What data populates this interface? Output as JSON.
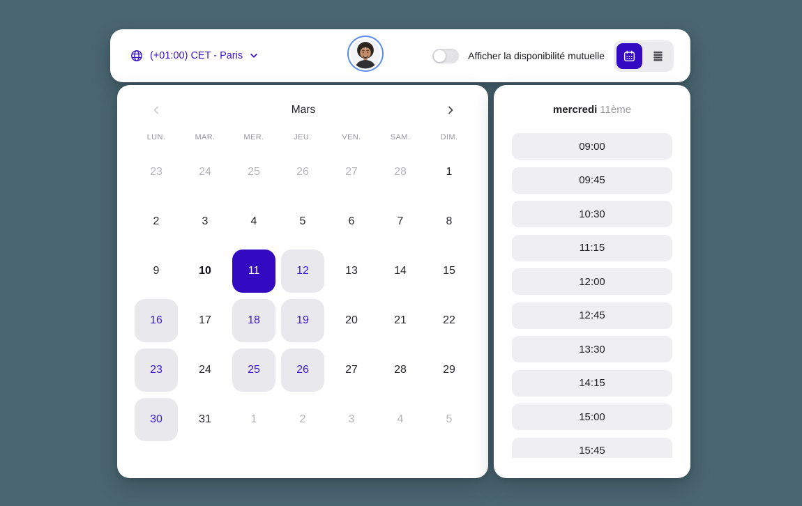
{
  "colors": {
    "bg": "#4a6671",
    "accent": "#3309c2",
    "accent_text": "#3a12c8",
    "avail_text": "#3c18d4",
    "avail_bg": "#e9e9ed",
    "slot_bg": "#efeff2",
    "ring": "#5b8def"
  },
  "topbar": {
    "timezone_label": "(+01:00) CET - Paris",
    "mutual_availability_label": "Afficher la disponibilité mutuelle",
    "toggle_state": "off",
    "view_switch": {
      "active": "calendar",
      "options": [
        "calendar",
        "list"
      ]
    }
  },
  "calendar": {
    "month_label": "Mars",
    "weekday_headers": [
      "LUN.",
      "MAR.",
      "MER.",
      "JEU.",
      "VEN.",
      "SAM.",
      "DIM."
    ],
    "days": [
      {
        "label": "23",
        "state": "muted"
      },
      {
        "label": "24",
        "state": "muted"
      },
      {
        "label": "25",
        "state": "muted"
      },
      {
        "label": "26",
        "state": "muted"
      },
      {
        "label": "27",
        "state": "muted"
      },
      {
        "label": "28",
        "state": "muted"
      },
      {
        "label": "1",
        "state": "normal"
      },
      {
        "label": "2",
        "state": "normal"
      },
      {
        "label": "3",
        "state": "normal"
      },
      {
        "label": "4",
        "state": "normal"
      },
      {
        "label": "5",
        "state": "normal"
      },
      {
        "label": "6",
        "state": "normal"
      },
      {
        "label": "7",
        "state": "normal"
      },
      {
        "label": "8",
        "state": "normal"
      },
      {
        "label": "9",
        "state": "normal"
      },
      {
        "label": "10",
        "state": "today"
      },
      {
        "label": "11",
        "state": "selected"
      },
      {
        "label": "12",
        "state": "available"
      },
      {
        "label": "13",
        "state": "normal"
      },
      {
        "label": "14",
        "state": "normal"
      },
      {
        "label": "15",
        "state": "normal"
      },
      {
        "label": "16",
        "state": "available"
      },
      {
        "label": "17",
        "state": "normal"
      },
      {
        "label": "18",
        "state": "available"
      },
      {
        "label": "19",
        "state": "available"
      },
      {
        "label": "20",
        "state": "normal"
      },
      {
        "label": "21",
        "state": "normal"
      },
      {
        "label": "22",
        "state": "normal"
      },
      {
        "label": "23",
        "state": "available"
      },
      {
        "label": "24",
        "state": "normal"
      },
      {
        "label": "25",
        "state": "available"
      },
      {
        "label": "26",
        "state": "available"
      },
      {
        "label": "27",
        "state": "normal"
      },
      {
        "label": "28",
        "state": "normal"
      },
      {
        "label": "29",
        "state": "normal"
      },
      {
        "label": "30",
        "state": "available"
      },
      {
        "label": "31",
        "state": "normal"
      },
      {
        "label": "1",
        "state": "muted"
      },
      {
        "label": "2",
        "state": "muted"
      },
      {
        "label": "3",
        "state": "muted"
      },
      {
        "label": "4",
        "state": "muted"
      },
      {
        "label": "5",
        "state": "muted"
      }
    ]
  },
  "slots": {
    "day_name": "mercredi",
    "day_ordinal": "11ème",
    "times": [
      "09:00",
      "09:45",
      "10:30",
      "11:15",
      "12:00",
      "12:45",
      "13:30",
      "14:15",
      "15:00",
      "15:45"
    ]
  }
}
